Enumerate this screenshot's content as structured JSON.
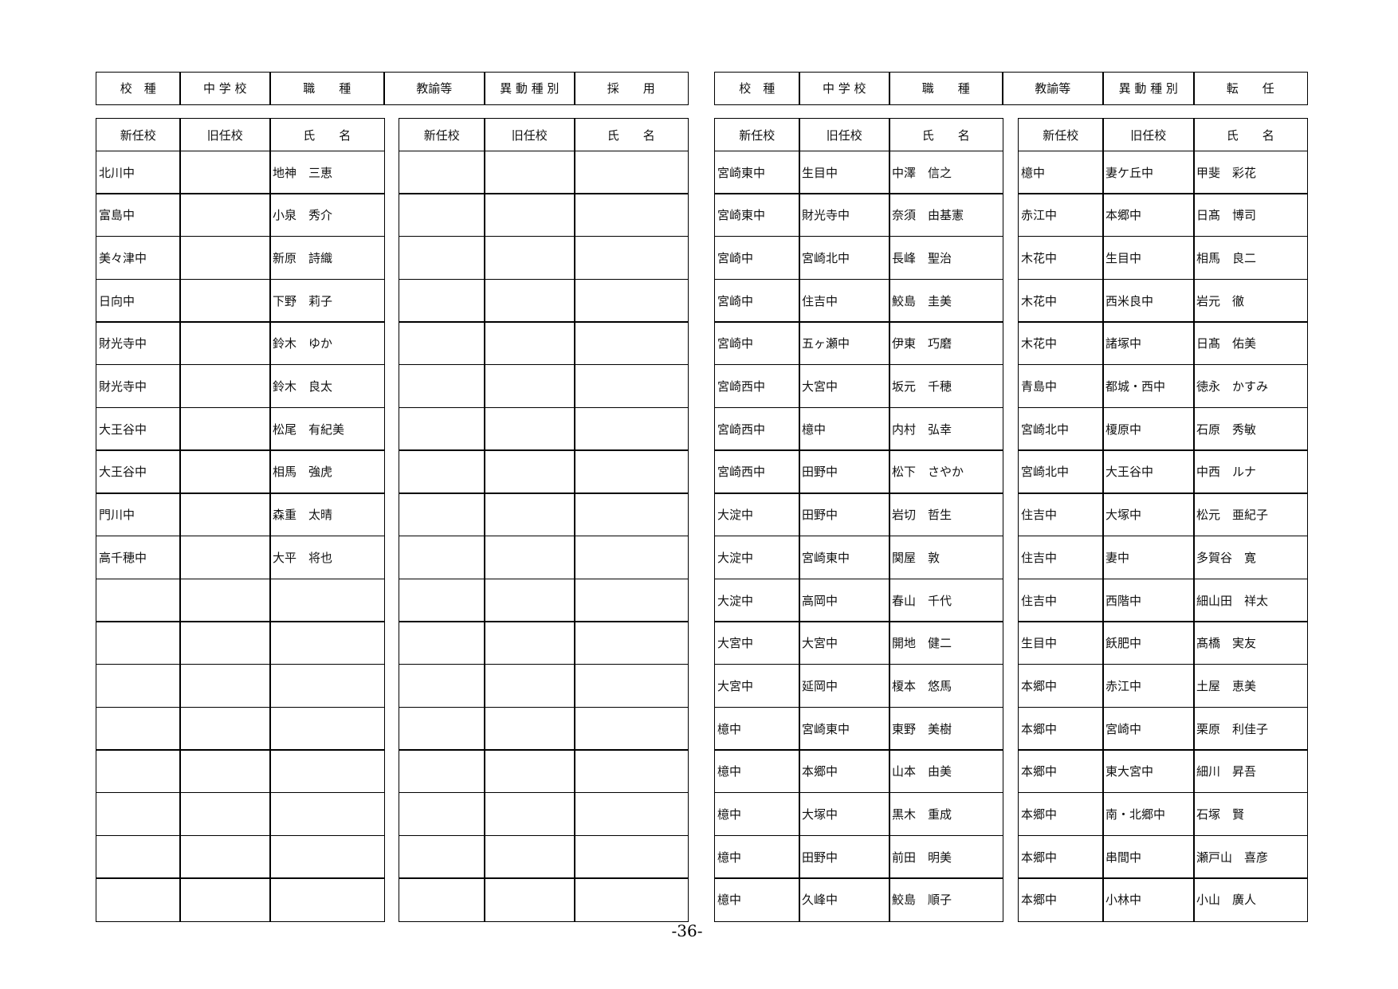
{
  "left": {
    "header": [
      "校　種",
      "中 学 校",
      "職　　種",
      "教諭等",
      "異 動 種 別",
      "採　　用"
    ],
    "columns": [
      "新任校",
      "旧任校",
      "氏　　名"
    ],
    "tables": [
      {
        "rows": [
          {
            "new": "北川中",
            "name": "地神　三恵"
          },
          {
            "new": "富島中",
            "name": "小泉　秀介"
          },
          {
            "new": "美々津中",
            "name": "新原　詩織"
          },
          {
            "new": "日向中",
            "name": "下野　莉子"
          },
          {
            "new": "財光寺中",
            "name": "鈴木　ゆか"
          },
          {
            "new": "財光寺中",
            "name": "鈴木　良太"
          },
          {
            "new": "大王谷中",
            "name": "松尾　有紀美"
          },
          {
            "new": "大王谷中",
            "name": "相馬　強虎"
          },
          {
            "new": "門川中",
            "name": "森重　太晴"
          },
          {
            "new": "高千穂中",
            "name": "大平　将也"
          }
        ]
      },
      {
        "rows": []
      }
    ]
  },
  "right": {
    "header": [
      "校　種",
      "中 学 校",
      "職　　種",
      "教諭等",
      "異 動 種 別",
      "転　　任"
    ],
    "columns": [
      "新任校",
      "旧任校",
      "氏　　名"
    ],
    "tables": [
      {
        "rows": [
          {
            "new": "宮崎東中",
            "old": "生目中",
            "name": "中澤　信之"
          },
          {
            "new": "宮崎東中",
            "old": "財光寺中",
            "name": "奈須　由基憲"
          },
          {
            "new": "宮崎中",
            "old": "宮崎北中",
            "name": "長峰　聖治"
          },
          {
            "new": "宮崎中",
            "old": "住吉中",
            "name": "鮫島　圭美"
          },
          {
            "new": "宮崎中",
            "old": "五ヶ瀬中",
            "name": "伊東　巧磨"
          },
          {
            "new": "宮崎西中",
            "old": "大宮中",
            "name": "坂元　千穂"
          },
          {
            "new": "宮崎西中",
            "old": "檍中",
            "name": "内村　弘幸"
          },
          {
            "new": "宮崎西中",
            "old": "田野中",
            "name": "松下　さやか"
          },
          {
            "new": "大淀中",
            "old": "田野中",
            "name": "岩切　哲生"
          },
          {
            "new": "大淀中",
            "old": "宮崎東中",
            "name": "関屋　敦"
          },
          {
            "new": "大淀中",
            "old": "高岡中",
            "name": "春山　千代"
          },
          {
            "new": "大宮中",
            "old": "大宮中",
            "name": "開地　健二"
          },
          {
            "new": "大宮中",
            "old": "延岡中",
            "name": "榎本　悠馬"
          },
          {
            "new": "檍中",
            "old": "宮崎東中",
            "name": "東野　美樹"
          },
          {
            "new": "檍中",
            "old": "本郷中",
            "name": "山本　由美"
          },
          {
            "new": "檍中",
            "old": "大塚中",
            "name": "黒木　重成"
          },
          {
            "new": "檍中",
            "old": "田野中",
            "name": "前田　明美"
          },
          {
            "new": "檍中",
            "old": "久峰中",
            "name": "鮫島　順子"
          }
        ]
      },
      {
        "rows": [
          {
            "new": "檍中",
            "old": "妻ケ丘中",
            "name": "甲斐　彩花"
          },
          {
            "new": "赤江中",
            "old": "本郷中",
            "name": "日髙　博司"
          },
          {
            "new": "木花中",
            "old": "生目中",
            "name": "相馬　良二"
          },
          {
            "new": "木花中",
            "old": "西米良中",
            "name": "岩元　徹"
          },
          {
            "new": "木花中",
            "old": "諸塚中",
            "name": "日髙　佑美"
          },
          {
            "new": "青島中",
            "old": "都城・西中",
            "name": "徳永　かすみ"
          },
          {
            "new": "宮崎北中",
            "old": "榎原中",
            "name": "石原　秀敏"
          },
          {
            "new": "宮崎北中",
            "old": "大王谷中",
            "name": "中西　ルナ"
          },
          {
            "new": "住吉中",
            "old": "大塚中",
            "name": "松元　亜紀子"
          },
          {
            "new": "住吉中",
            "old": "妻中",
            "name": "多賀谷　寛"
          },
          {
            "new": "住吉中",
            "old": "西階中",
            "name": "細山田　祥太"
          },
          {
            "new": "生目中",
            "old": "飫肥中",
            "name": "髙橋　実友"
          },
          {
            "new": "本郷中",
            "old": "赤江中",
            "name": "土屋　恵美"
          },
          {
            "new": "本郷中",
            "old": "宮崎中",
            "name": "栗原　利佳子"
          },
          {
            "new": "本郷中",
            "old": "東大宮中",
            "name": "細川　昇吾"
          },
          {
            "new": "本郷中",
            "old": "南・北郷中",
            "name": "石塚　賢"
          },
          {
            "new": "本郷中",
            "old": "串間中",
            "name": "瀬戸山　喜彦"
          },
          {
            "new": "本郷中",
            "old": "小林中",
            "name": "小山　廣人"
          }
        ]
      }
    ]
  },
  "page_number": "-36-"
}
